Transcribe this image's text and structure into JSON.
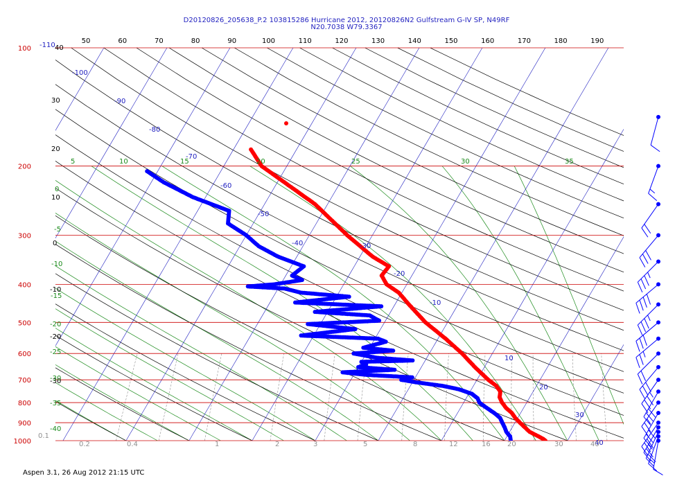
{
  "header": {
    "line1": "D20120826_205638_P.2 103815286 Hurricane 2012, 20120826N2 Gulfstream G-IV SP, N49RF",
    "line2": "N20.7038 W79.3367"
  },
  "footer": {
    "text": "Aspen 3.1, 26 Aug 2012  21:15 UTC"
  },
  "colors": {
    "temperature": "#ff0000",
    "dewpoint": "#0000ff",
    "isobar": "#cc0000",
    "isotherm": "#2020c0",
    "dry_adiabat": "#000000",
    "moist_adiabat": "#1a8a1a",
    "mixing_ratio": "#909090",
    "wind": "#0000ff"
  },
  "chart_data": {
    "type": "skew-t log-p sounding",
    "pressure_range": [
      1000,
      100
    ],
    "top_temp_axis": [
      "50",
      "60",
      "70",
      "80",
      "90",
      "100",
      "110",
      "120",
      "130",
      "140",
      "150",
      "160",
      "170",
      "180",
      "190"
    ],
    "isobar_labels": [
      "100",
      "200",
      "300",
      "400",
      "500",
      "600",
      "700",
      "800",
      "900",
      "1000"
    ],
    "isotherm_labels": [
      "-110",
      "-100",
      "-90",
      "-80",
      "-70",
      "-60",
      "-50",
      "-40",
      "-30",
      "-20",
      "-10",
      "10",
      "20",
      "30",
      "40"
    ],
    "dry_adiabat_labels": [
      "40",
      "30",
      "20",
      "10",
      "0",
      "-10",
      "-20",
      "-30"
    ],
    "moist_adiabat_labels": [
      "5",
      "10",
      "15",
      "20",
      "25",
      "30",
      "35",
      "0",
      "-5",
      "-10",
      "-15",
      "-20",
      "-25",
      "-30",
      "-35",
      "-40"
    ],
    "mixing_ratio_labels": [
      "0.1",
      "0.2",
      "0.4",
      "1",
      "2",
      "3",
      "5",
      "8",
      "12",
      "16",
      "20",
      "30",
      "40"
    ],
    "series": [
      {
        "name": "temperature",
        "points": [
          [
            1000,
            26.5
          ],
          [
            990,
            26
          ],
          [
            975,
            25
          ],
          [
            950,
            23.2
          ],
          [
            925,
            22
          ],
          [
            900,
            20.8
          ],
          [
            875,
            19.6
          ],
          [
            850,
            18.6
          ],
          [
            825,
            17.2
          ],
          [
            800,
            16.1
          ],
          [
            775,
            15.2
          ],
          [
            750,
            14.8
          ],
          [
            725,
            13.6
          ],
          [
            700,
            11.8
          ],
          [
            650,
            8.5
          ],
          [
            600,
            5.2
          ],
          [
            550,
            1.2
          ],
          [
            500,
            -3.5
          ],
          [
            450,
            -7.8
          ],
          [
            420,
            -10.5
          ],
          [
            400,
            -13.2
          ],
          [
            380,
            -14.8
          ],
          [
            360,
            -14.5
          ],
          [
            340,
            -18
          ],
          [
            300,
            -24
          ],
          [
            250,
            -32
          ],
          [
            200,
            -44
          ],
          [
            180,
            -47.5
          ]
        ]
      },
      {
        "name": "dewpoint",
        "points": [
          [
            1000,
            21
          ],
          [
            975,
            20.5
          ],
          [
            950,
            19.5
          ],
          [
            925,
            18.8
          ],
          [
            900,
            18
          ],
          [
            875,
            17.2
          ],
          [
            850,
            15.8
          ],
          [
            820,
            13.8
          ],
          [
            800,
            12.5
          ],
          [
            780,
            11.8
          ],
          [
            760,
            10.5
          ],
          [
            740,
            8
          ],
          [
            725,
            5
          ],
          [
            710,
            0.5
          ],
          [
            700,
            -2
          ],
          [
            690,
            -0.5
          ],
          [
            680,
            -8
          ],
          [
            670,
            -12
          ],
          [
            660,
            -4
          ],
          [
            650,
            -10
          ],
          [
            640,
            -9
          ],
          [
            630,
            -10
          ],
          [
            625,
            -2
          ],
          [
            615,
            -8
          ],
          [
            600,
            -12
          ],
          [
            590,
            -6
          ],
          [
            580,
            -11
          ],
          [
            560,
            -8
          ],
          [
            550,
            -9.5
          ],
          [
            540,
            -22
          ],
          [
            520,
            -14
          ],
          [
            505,
            -22
          ],
          [
            495,
            -11
          ],
          [
            480,
            -13
          ],
          [
            470,
            -22
          ],
          [
            455,
            -12
          ],
          [
            445,
            -26
          ],
          [
            430,
            -18
          ],
          [
            420,
            -26
          ],
          [
            410,
            -29
          ],
          [
            405,
            -35
          ],
          [
            400,
            -31
          ],
          [
            390,
            -27
          ],
          [
            380,
            -29
          ],
          [
            360,
            -28
          ],
          [
            340,
            -33
          ],
          [
            320,
            -37
          ],
          [
            300,
            -40
          ],
          [
            280,
            -44
          ],
          [
            260,
            -45
          ],
          [
            240,
            -52
          ],
          [
            220,
            -58
          ],
          [
            205,
            -62
          ]
        ]
      }
    ],
    "wind_barbs": [
      {
        "pressure": 1000,
        "speed_kt": 10,
        "dir_deg": 190
      },
      {
        "pressure": 975,
        "speed_kt": 15,
        "dir_deg": 200
      },
      {
        "pressure": 950,
        "speed_kt": 20,
        "dir_deg": 205
      },
      {
        "pressure": 925,
        "speed_kt": 25,
        "dir_deg": 210
      },
      {
        "pressure": 900,
        "speed_kt": 30,
        "dir_deg": 215
      },
      {
        "pressure": 850,
        "speed_kt": 30,
        "dir_deg": 210
      },
      {
        "pressure": 800,
        "speed_kt": 25,
        "dir_deg": 215
      },
      {
        "pressure": 750,
        "speed_kt": 30,
        "dir_deg": 210
      },
      {
        "pressure": 700,
        "speed_kt": 35,
        "dir_deg": 215
      },
      {
        "pressure": 650,
        "speed_kt": 30,
        "dir_deg": 220
      },
      {
        "pressure": 600,
        "speed_kt": 20,
        "dir_deg": 225
      },
      {
        "pressure": 550,
        "speed_kt": 25,
        "dir_deg": 230
      },
      {
        "pressure": 500,
        "speed_kt": 30,
        "dir_deg": 230
      },
      {
        "pressure": 450,
        "speed_kt": 35,
        "dir_deg": 225
      },
      {
        "pressure": 400,
        "speed_kt": 40,
        "dir_deg": 230
      },
      {
        "pressure": 350,
        "speed_kt": 35,
        "dir_deg": 225
      },
      {
        "pressure": 300,
        "speed_kt": 30,
        "dir_deg": 220
      },
      {
        "pressure": 250,
        "speed_kt": 20,
        "dir_deg": 215
      },
      {
        "pressure": 200,
        "speed_kt": 15,
        "dir_deg": 200
      },
      {
        "pressure": 150,
        "speed_kt": 10,
        "dir_deg": 195
      }
    ]
  }
}
